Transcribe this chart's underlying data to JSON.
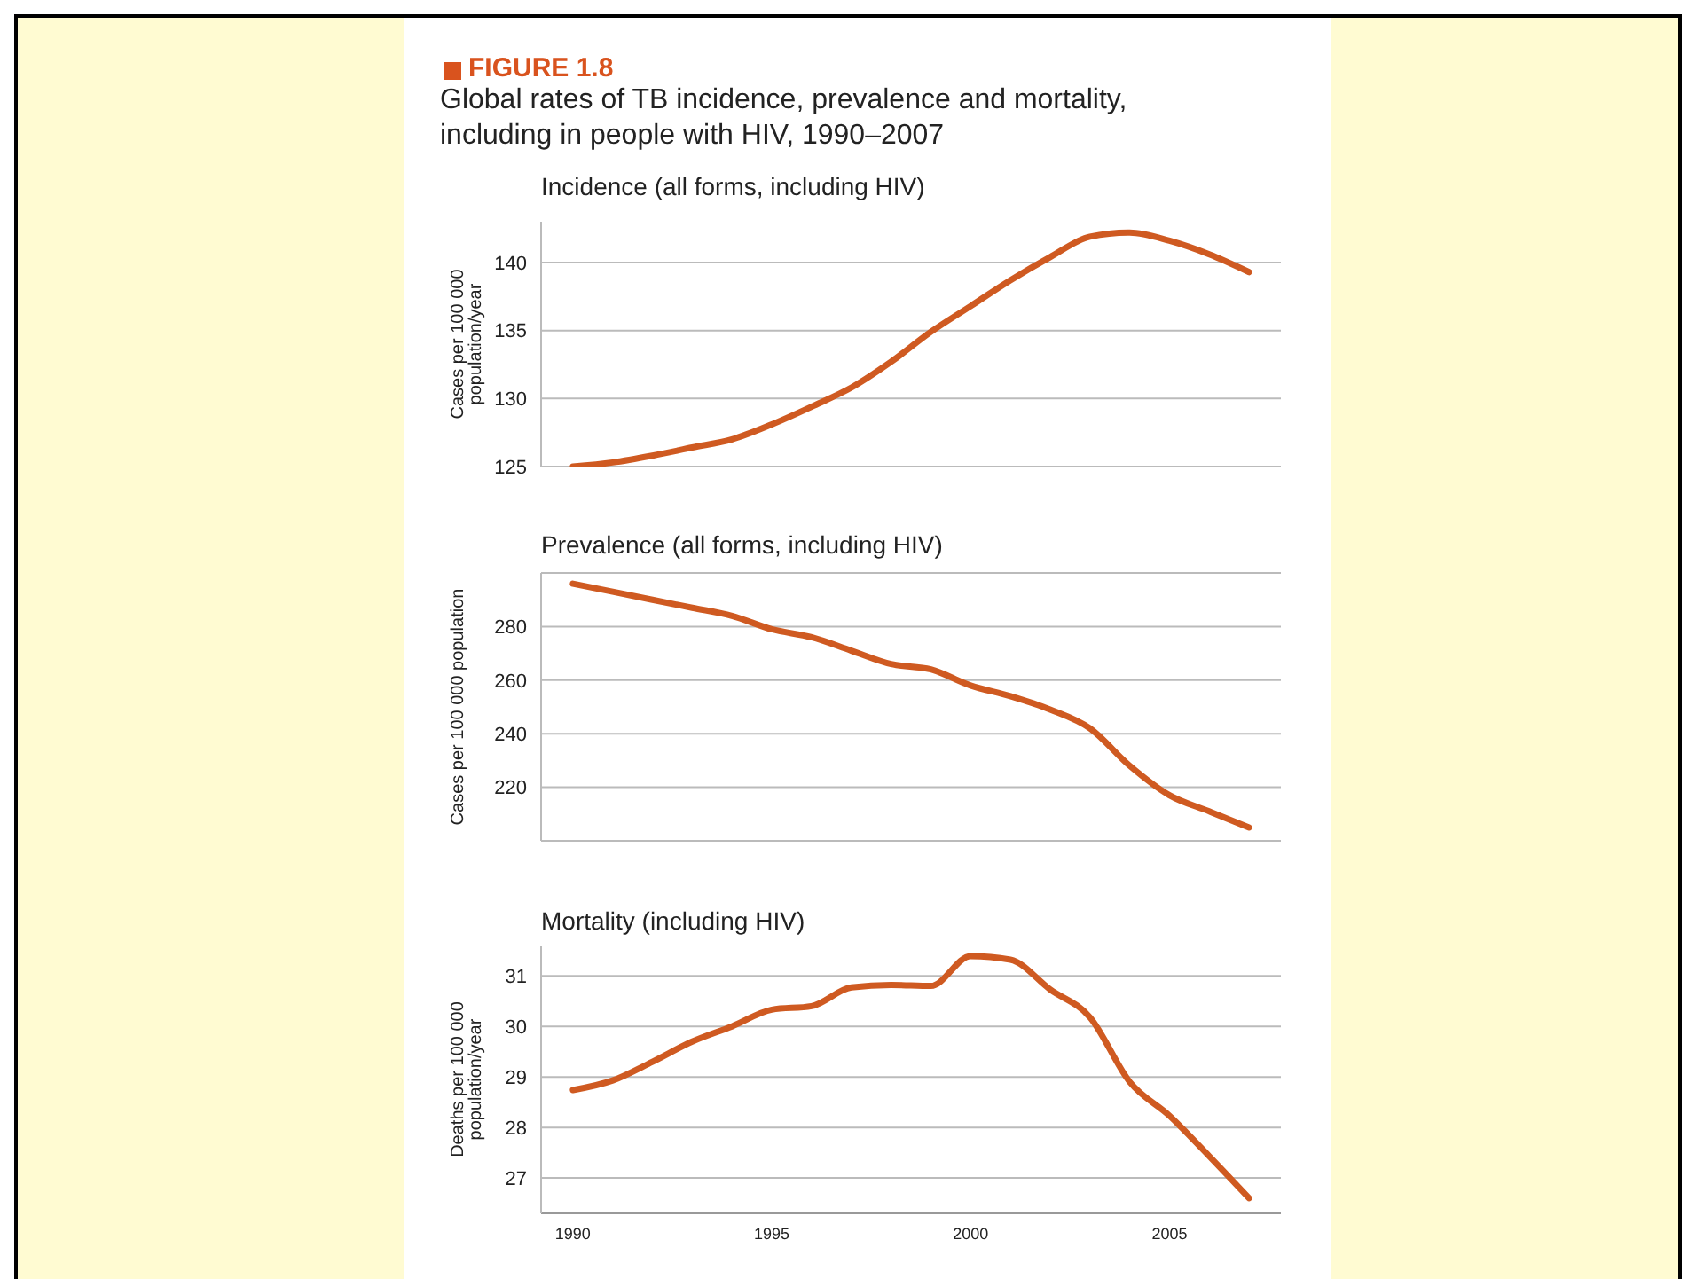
{
  "chart_data": [
    {
      "type": "line",
      "annotations": [
        "FIGURE 1.8",
        "Global rates of TB incidence, prevalence and mortality, including in people with HIV, 1990–2007"
      ],
      "title": "Incidence (all forms, including HIV)",
      "ylabel": "Cases per 100 000 population/year",
      "x": [
        1990,
        1991,
        1992,
        1993,
        1994,
        1995,
        1996,
        1997,
        1998,
        1999,
        2000,
        2001,
        2002,
        2003,
        2004,
        2005,
        2006,
        2007
      ],
      "xlim": [
        1989.2,
        2007.8
      ],
      "xticks": [
        1990,
        1995,
        2000,
        2005
      ],
      "ylim": [
        125,
        143
      ],
      "yticks": [
        125,
        130,
        135,
        140
      ],
      "grid": "y",
      "tick_labels": "y",
      "marker": "none",
      "line_style": "solid",
      "series": [
        {
          "color": "#cf5a21",
          "values": [
            125.0,
            125.3,
            125.8,
            126.4,
            127.0,
            128.1,
            129.4,
            130.8,
            132.7,
            134.9,
            136.8,
            138.7,
            140.4,
            141.9,
            142.2,
            141.6,
            140.6,
            139.3
          ]
        }
      ]
    },
    {
      "type": "line",
      "title": "Prevalence (all forms, including HIV)",
      "ylabel": "Cases per 100 000 population",
      "x": [
        1990,
        1991,
        1992,
        1993,
        1994,
        1995,
        1996,
        1997,
        1998,
        1999,
        2000,
        2001,
        2002,
        2003,
        2004,
        2005,
        2006,
        2007
      ],
      "xlim": [
        1989.2,
        2007.8
      ],
      "xticks": [
        1990,
        1995,
        2000,
        2005
      ],
      "ylim": [
        200,
        300
      ],
      "yticks": [
        {
          "value": 200,
          "label": null
        },
        220,
        240,
        260,
        280,
        {
          "value": 300,
          "label": null
        }
      ],
      "grid": "y",
      "tick_labels": "y",
      "marker": "none",
      "line_style": "solid",
      "series": [
        {
          "color": "#cf5a21",
          "values": [
            296,
            293,
            290,
            287,
            284,
            279,
            276,
            271,
            266,
            264,
            258,
            254,
            249,
            242,
            228,
            217,
            211,
            205
          ]
        }
      ]
    },
    {
      "type": "line",
      "title": "Mortality (including HIV)",
      "ylabel": "Deaths per 100 000 population/year",
      "x": [
        1990,
        1991,
        1992,
        1993,
        1994,
        1995,
        1996,
        1997,
        1998,
        1999,
        2000,
        2001,
        2002,
        2003,
        2004,
        2005,
        2006,
        2007
      ],
      "xlim": [
        1989.2,
        2007.8
      ],
      "xticks": [
        1990,
        1995,
        2000,
        2005
      ],
      "ylim": [
        26.3,
        31.6
      ],
      "yticks": [
        27,
        28,
        29,
        30,
        31
      ],
      "grid": "y",
      "marker": "none",
      "line_style": "solid",
      "series": [
        {
          "color": "#cf5a21",
          "values": [
            28.74,
            28.93,
            29.3,
            29.7,
            30.0,
            30.33,
            30.4,
            30.77,
            30.82,
            30.8,
            31.39,
            31.32,
            30.73,
            30.18,
            28.9,
            28.23,
            27.43,
            26.6
          ]
        }
      ]
    }
  ]
}
